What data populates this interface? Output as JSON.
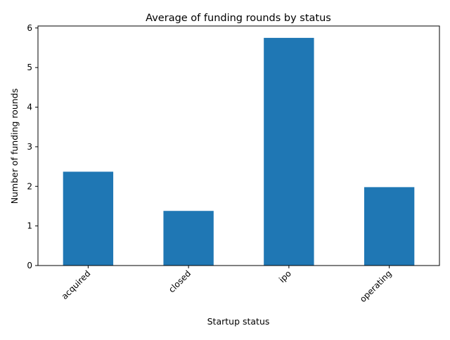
{
  "chart_data": {
    "type": "bar",
    "title": "Average of funding rounds by status",
    "xlabel": "Startup status",
    "ylabel": "Number of funding rounds",
    "categories": [
      "acquired",
      "closed",
      "ipo",
      "operating"
    ],
    "values": [
      2.37,
      1.38,
      5.75,
      1.98
    ],
    "ylim": [
      0,
      6.05
    ],
    "yticks": [
      0,
      1,
      2,
      3,
      4,
      5,
      6
    ],
    "bar_color": "#1f77b4",
    "grid": false,
    "legend": "none"
  }
}
